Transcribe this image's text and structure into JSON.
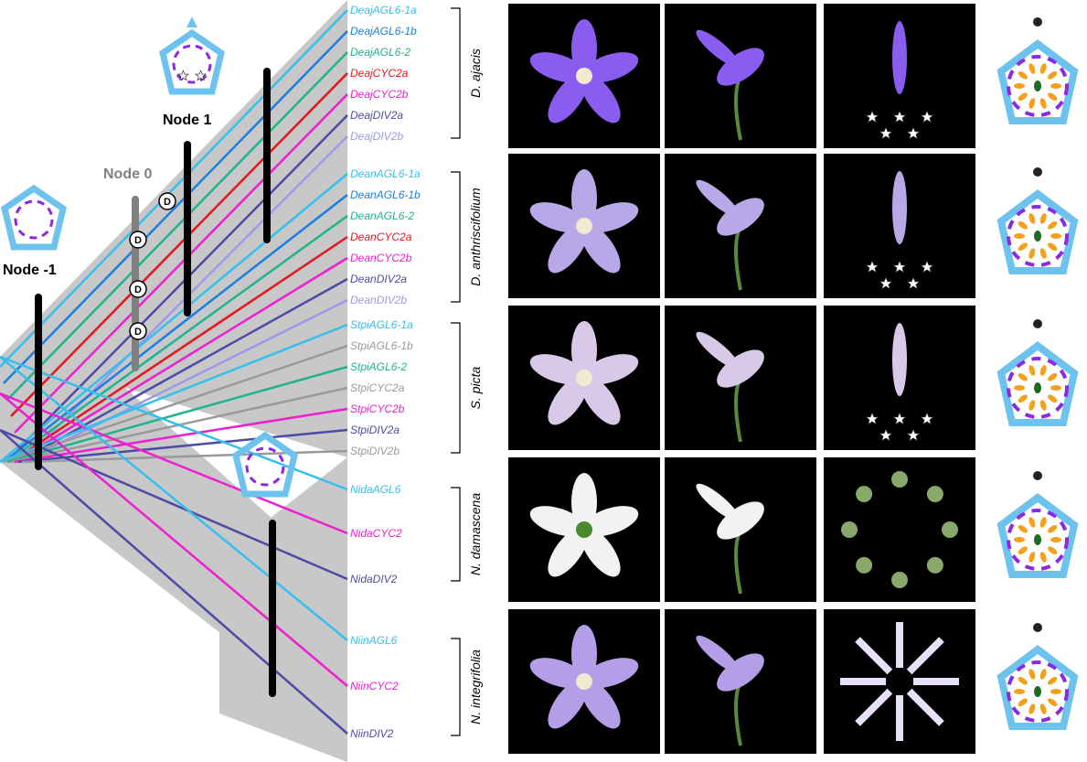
{
  "nodes": {
    "node_m1": "Node -1",
    "node_0": "Node 0",
    "node_1": "Node 1"
  },
  "duplication_marker": "D",
  "colors": {
    "AGL6_1a": "#35bfee",
    "AGL6_1b": "#1a7fe0",
    "AGL6_2": "#1fb48e",
    "CYC2a": "#e8141c",
    "CYC2b": "#ee1fcf",
    "DIV2a": "#4b4ba6",
    "DIV2b": "#9a9ae8",
    "lost": "#9a9a9a",
    "band": "#c8c8c8",
    "perianth_blue": "#6ec3ee",
    "petal_purple": "#8a2be2",
    "stamen_orange": "#f4a01c",
    "carpel_green": "#1f6a22"
  },
  "species": [
    {
      "name": "D. ajacis",
      "genes": [
        {
          "label": "DeajAGL6-1a",
          "color": "#35bfee"
        },
        {
          "label": "DeajAGL6-1b",
          "color": "#1a7fe0"
        },
        {
          "label": "DeajAGL6-2",
          "color": "#1fb48e"
        },
        {
          "label": "DeajCYC2a",
          "color": "#e8141c"
        },
        {
          "label": "DeajCYC2b",
          "color": "#ee1fcf"
        },
        {
          "label": "DeajDIV2a",
          "color": "#4b4ba6"
        },
        {
          "label": "DeajDIV2b",
          "color": "#9a9ae8"
        }
      ]
    },
    {
      "name": "D. anthriscifolium",
      "genes": [
        {
          "label": "DeanAGL6-1a",
          "color": "#35bfee"
        },
        {
          "label": "DeanAGL6-1b",
          "color": "#1a7fe0"
        },
        {
          "label": "DeanAGL6-2",
          "color": "#1fb48e"
        },
        {
          "label": "DeanCYC2a",
          "color": "#e8141c"
        },
        {
          "label": "DeanCYC2b",
          "color": "#ee1fcf"
        },
        {
          "label": "DeanDIV2a",
          "color": "#4b4ba6"
        },
        {
          "label": "DeanDIV2b",
          "color": "#9a9ae8"
        }
      ]
    },
    {
      "name": "S. picta",
      "genes": [
        {
          "label": "StpiAGL6-1a",
          "color": "#35bfee"
        },
        {
          "label": "StpiAGL6-1b",
          "color": "#9a9a9a"
        },
        {
          "label": "StpiAGL6-2",
          "color": "#1fb48e"
        },
        {
          "label": "StpiCYC2a",
          "color": "#9a9a9a"
        },
        {
          "label": "StpiCYC2b",
          "color": "#ee1fcf"
        },
        {
          "label": "StpiDIV2a",
          "color": "#4b4ba6"
        },
        {
          "label": "StpiDIV2b",
          "color": "#9a9a9a"
        }
      ]
    },
    {
      "name": "N. damascena",
      "genes": [
        {
          "label": "NidaAGL6",
          "color": "#35bfee"
        },
        {
          "label": "NidaCYC2",
          "color": "#ee1fcf"
        },
        {
          "label": "NidaDIV2",
          "color": "#4b4ba6"
        }
      ]
    },
    {
      "name": "N. integrifolia",
      "genes": [
        {
          "label": "NiinAGL6",
          "color": "#35bfee"
        },
        {
          "label": "NiinCYC2",
          "color": "#ee1fcf"
        },
        {
          "label": "NiinDIV2",
          "color": "#4b4ba6"
        }
      ]
    }
  ],
  "photo_icons": [
    "flower-front-photo",
    "flower-side-photo",
    "dissected-perianth-photo"
  ],
  "diagram_icons": [
    "floral-diagram"
  ]
}
